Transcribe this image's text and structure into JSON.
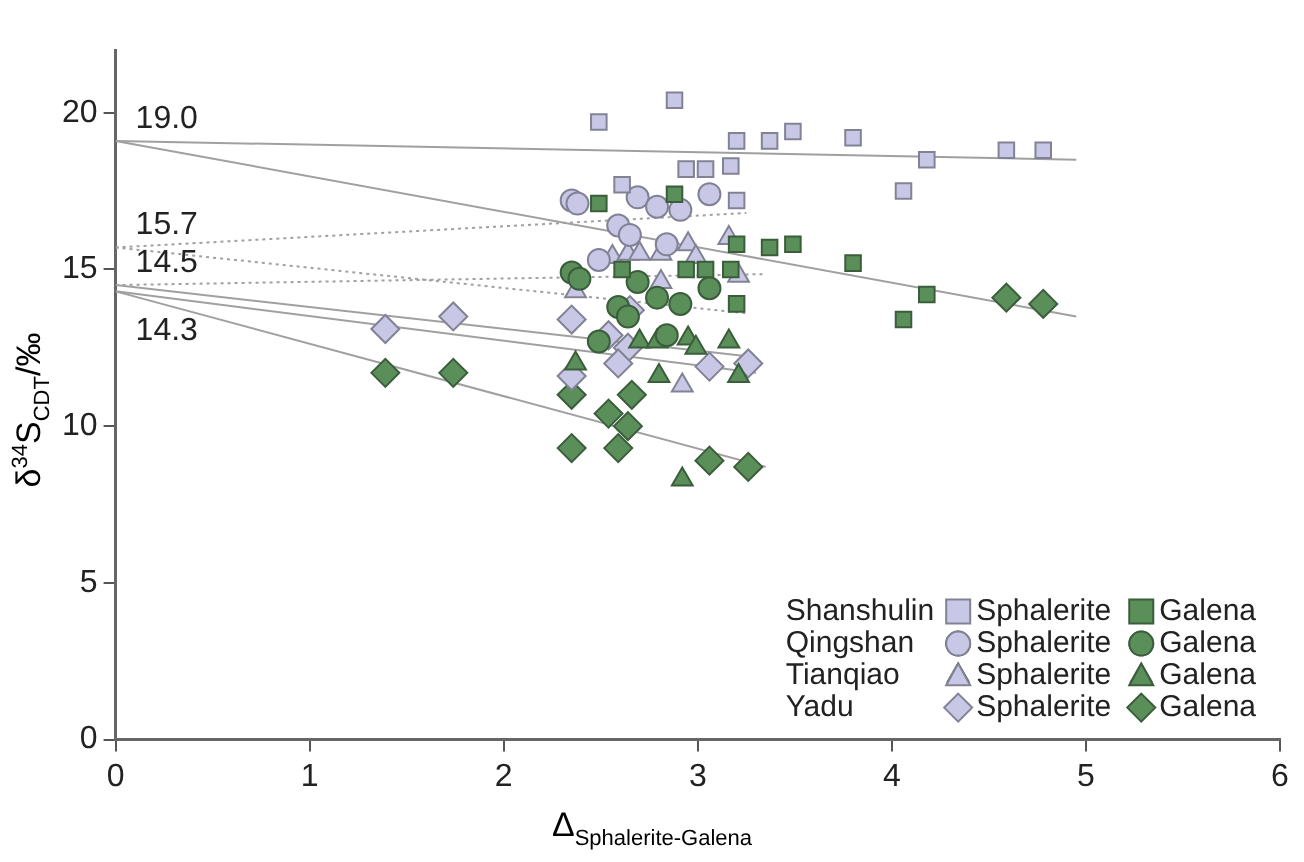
{
  "chart_data": {
    "type": "scatter",
    "xlabel": "Δ$_{Sphalerite-Galena}$",
    "ylabel": "δ$^{34}$S$_{CDT}$/‰",
    "xlim": [
      0,
      6
    ],
    "xticks": [
      0,
      1,
      2,
      3,
      4,
      5,
      6
    ],
    "ylim": [
      0,
      22
    ],
    "yticks": [
      0,
      5,
      10,
      15,
      20
    ],
    "grid": false,
    "legend": "bottom right",
    "annotations": [
      {
        "text": "19.0",
        "y": 19.1
      },
      {
        "text": "15.7",
        "y": 15.7
      },
      {
        "text": "14.5",
        "y": 14.5
      },
      {
        "text": "14.3",
        "y": 14.3
      },
      "Shanshulin",
      "Qingshan",
      "Tianqiao",
      "Yadu"
    ],
    "series": [
      {
        "name": "Sphalerite",
        "marker": "square",
        "color": "#c8c8e6",
        "x": [
          2.88,
          2.49,
          3.2,
          3.37,
          3.49,
          2.94,
          3.04,
          3.17,
          2.61,
          3.2,
          3.8,
          4.18,
          4.59,
          4.78,
          4.06
        ],
        "values": [
          20.4,
          19.7,
          19.1,
          19.1,
          19.4,
          18.2,
          18.2,
          18.3,
          17.7,
          17.2,
          19.2,
          18.5,
          18.8,
          18.8,
          17.5
        ]
      },
      {
        "name": "Galena",
        "marker": "square",
        "color": "#5a8f5a",
        "x": [
          2.49,
          2.88,
          3.2,
          3.37,
          3.49,
          2.61,
          2.94,
          3.04,
          3.17,
          3.2,
          3.8,
          4.18,
          4.06
        ],
        "values": [
          17.1,
          17.4,
          15.8,
          15.7,
          15.8,
          15.0,
          15.0,
          15.0,
          15.0,
          13.9,
          15.2,
          14.2,
          13.4
        ]
      },
      {
        "name": "Sphalerite",
        "marker": "circle",
        "color": "#c8c8e6",
        "x": [
          2.35,
          2.38,
          2.69,
          2.79,
          2.91,
          3.06,
          2.59,
          2.65,
          2.84,
          2.49
        ],
        "values": [
          17.2,
          17.1,
          17.3,
          17.0,
          16.9,
          17.4,
          16.4,
          16.1,
          15.8,
          15.3
        ]
      },
      {
        "name": "Galena",
        "marker": "circle",
        "color": "#5a8f5a",
        "x": [
          2.35,
          2.39,
          2.69,
          3.06,
          2.79,
          2.91,
          2.59,
          2.49,
          2.84,
          2.64
        ],
        "values": [
          14.9,
          14.7,
          14.6,
          14.4,
          14.1,
          13.9,
          13.8,
          12.7,
          12.9,
          13.5
        ]
      },
      {
        "name": "Sphalerite",
        "marker": "triangle",
        "color": "#c8c8e6",
        "x": [
          2.56,
          2.64,
          2.7,
          2.81,
          2.95,
          2.99,
          3.16,
          3.21,
          2.81,
          2.37,
          2.92
        ],
        "values": [
          15.4,
          15.5,
          15.5,
          15.5,
          15.8,
          15.4,
          16.0,
          14.8,
          14.6,
          14.3,
          11.3
        ]
      },
      {
        "name": "Galena",
        "marker": "triangle",
        "color": "#5a8f5a",
        "x": [
          2.7,
          2.79,
          2.95,
          2.99,
          3.16,
          2.8,
          3.21,
          2.37,
          2.92
        ],
        "values": [
          12.7,
          12.7,
          12.8,
          12.5,
          12.7,
          11.6,
          11.6,
          12.0,
          8.3
        ]
      },
      {
        "name": "Sphalerite",
        "marker": "diamond",
        "color": "#c8c8e6",
        "x": [
          1.39,
          1.74,
          2.35,
          2.65,
          2.54,
          2.64,
          2.59,
          2.35,
          3.06,
          3.26
        ],
        "values": [
          13.1,
          13.5,
          13.4,
          13.7,
          12.9,
          12.5,
          12.0,
          11.6,
          11.9,
          12.0
        ]
      },
      {
        "name": "Galena",
        "marker": "diamond",
        "color": "#5a8f5a",
        "x": [
          1.39,
          1.74,
          2.35,
          2.66,
          2.54,
          2.64,
          2.35,
          2.59,
          3.06,
          3.26,
          4.59,
          4.78
        ],
        "values": [
          11.7,
          11.7,
          11.0,
          11.0,
          10.4,
          10.0,
          9.3,
          9.3,
          8.9,
          8.7,
          14.1,
          13.9
        ]
      },
      {
        "type": "line",
        "marker": "none",
        "line_style": "solid",
        "color": "#a0a0a0",
        "x": [
          0,
          4.95
        ],
        "values": [
          19.1,
          18.5
        ]
      },
      {
        "type": "line",
        "marker": "none",
        "line_style": "solid",
        "color": "#a0a0a0",
        "x": [
          0,
          4.95
        ],
        "values": [
          19.1,
          13.5
        ]
      },
      {
        "type": "line",
        "marker": "none",
        "line_style": "dotted",
        "color": "#a0a0a0",
        "x": [
          0,
          3.25
        ],
        "values": [
          15.7,
          16.8
        ]
      },
      {
        "type": "line",
        "marker": "none",
        "line_style": "dotted",
        "color": "#a0a0a0",
        "x": [
          0,
          3.25
        ],
        "values": [
          15.7,
          13.6
        ]
      },
      {
        "type": "line",
        "marker": "none",
        "line_style": "dotted",
        "color": "#a0a0a0",
        "x": [
          0,
          3.35
        ],
        "values": [
          14.5,
          14.85
        ]
      },
      {
        "type": "line",
        "marker": "none",
        "line_style": "solid",
        "color": "#a0a0a0",
        "x": [
          0,
          3.3
        ],
        "values": [
          14.5,
          12.2
        ]
      },
      {
        "type": "line",
        "marker": "none",
        "line_style": "solid",
        "color": "#a0a0a0",
        "x": [
          0,
          3.3
        ],
        "values": [
          14.3,
          11.7
        ]
      },
      {
        "type": "line",
        "marker": "none",
        "line_style": "solid",
        "color": "#a0a0a0",
        "x": [
          0,
          3.35
        ],
        "values": [
          14.3,
          8.7
        ]
      }
    ]
  }
}
